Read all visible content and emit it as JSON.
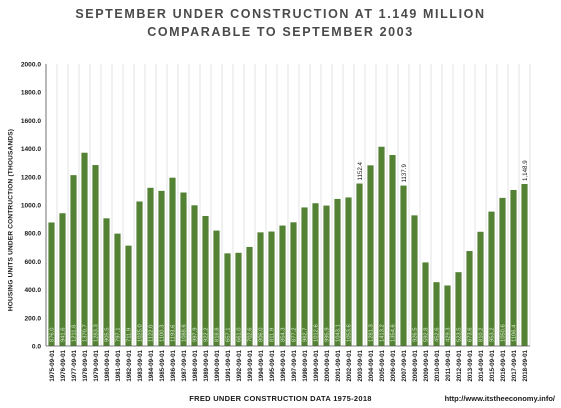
{
  "title_line1": "SEPTEMBER UNDER CONSTRUCTION AT 1.149 MILLION",
  "title_line2": "COMPARABLE TO SEPTEMBER 2003",
  "xlabel": "FRED UNDER CONSTRUCTION DATA 1975-2018",
  "ylabel": "HOUSING UNITS UNDER CONTRUCTION (THOUSANDS)",
  "source": "http://www.itstheeconomy.info/",
  "bar_color": "#548235",
  "chart_data": {
    "type": "bar",
    "title": "SEPTEMBER UNDER CONSTRUCTION AT 1.149 MILLION COMPARABLE TO SEPTEMBER 2003",
    "xlabel": "FRED UNDER CONSTRUCTION DATA 1975-2018",
    "ylabel": "HOUSING UNITS UNDER CONTRUCTION (THOUSANDS)",
    "ylim": [
      0,
      2000
    ],
    "yticks": [
      0,
      200,
      400,
      600,
      800,
      1000,
      1200,
      1400,
      1600,
      1800,
      2000
    ],
    "ytick_labels": [
      "0.0",
      "200.0",
      "400.0",
      "600.0",
      "800.0",
      "1000.0",
      "1200.0",
      "1400.0",
      "1600.0",
      "1800.0",
      "2000.0"
    ],
    "grid": "vertical",
    "categories": [
      "1975-09-01",
      "1976-09-01",
      "1977-09-01",
      "1978-09-01",
      "1979-09-01",
      "1980-09-01",
      "1981-09-01",
      "1982-09-01",
      "1983-09-01",
      "1984-09-01",
      "1985-09-01",
      "1986-09-01",
      "1987-09-01",
      "1988-09-01",
      "1989-09-01",
      "1990-09-01",
      "1991-09-01",
      "1992-09-01",
      "1993-09-01",
      "1994-09-01",
      "1995-09-01",
      "1996-09-01",
      "1997-09-01",
      "1998-09-01",
      "1999-09-01",
      "2000-09-01",
      "2001-09-01",
      "2002-09-01",
      "2003-09-01",
      "2004-09-01",
      "2005-09-01",
      "2006-09-01",
      "2007-09-01",
      "2008-09-01",
      "2009-09-01",
      "2010-09-01",
      "2011-09-01",
      "2012-09-01",
      "2013-09-01",
      "2014-09-01",
      "2015-09-01",
      "2016-09-01",
      "2017-09-01",
      "2018-09-01"
    ],
    "values": [
      876.0,
      941.6,
      1211.8,
      1370.7,
      1283.3,
      905.5,
      797.1,
      711.9,
      1025.0,
      1122.0,
      1100.3,
      1193.6,
      1088.6,
      997.9,
      922.2,
      818.8,
      657.1,
      661.0,
      702.6,
      806.0,
      811.9,
      854.3,
      877.2,
      982.7,
      1012.6,
      995.9,
      1043.1,
      1053.6,
      1152.4,
      1281.3,
      1413.2,
      1354.6,
      1137.9,
      926.5,
      592.8,
      452.6,
      429.3,
      523.5,
      673.6,
      810.2,
      953.2,
      1050.6,
      1106.4,
      1148.9
    ],
    "value_labels": [
      "876.0",
      "941.6",
      "1211.8",
      "1370.7",
      "1283.3",
      "905.5",
      "797.1",
      "711.9",
      "1025.0",
      "1122.0",
      "1100.3",
      "1193.6",
      "1088.6",
      "997.9",
      "922.2",
      "818.8",
      "657.1",
      "661.0",
      "702.6",
      "806.0",
      "811.9",
      "854.3",
      "877.2",
      "982.7",
      "1012.6",
      "995.9",
      "1043.1",
      "1053.6",
      "1152.4",
      "1281.3",
      "1413.2",
      "1354.6",
      "1137.9",
      "926.5",
      "592.8",
      "452.6",
      "429.3",
      "523.5",
      "673.6",
      "810.2",
      "953.2",
      "1050.6",
      "1106.4",
      "1,148.9"
    ],
    "callout_indices": [
      28,
      32,
      43
    ]
  }
}
